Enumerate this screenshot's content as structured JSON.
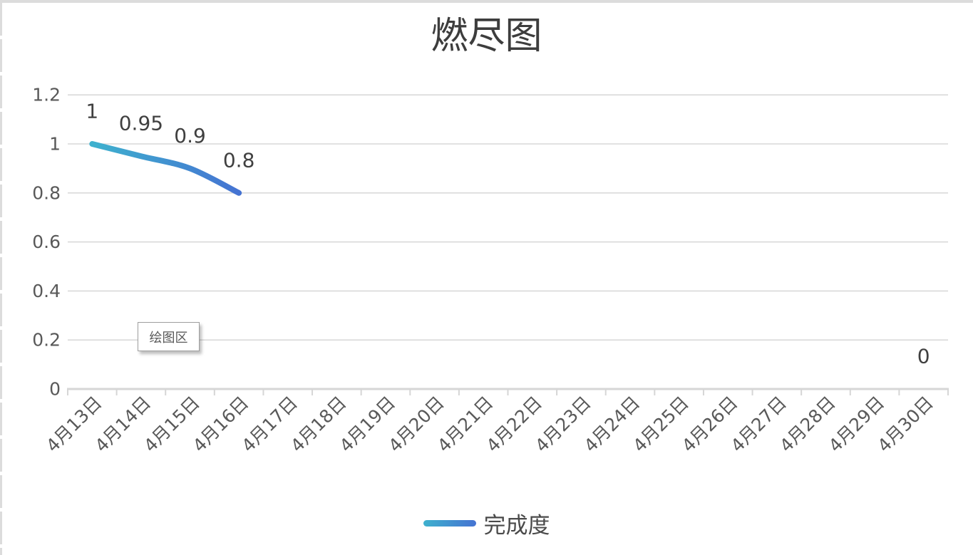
{
  "frame": {
    "background": "#ffffff",
    "border_color": "#dcdcdc"
  },
  "tooltip": {
    "text": "绘图区"
  },
  "chart_data": {
    "type": "line",
    "title": "燃尽图",
    "categories": [
      "4月13日",
      "4月14日",
      "4月15日",
      "4月16日",
      "4月17日",
      "4月18日",
      "4月19日",
      "4月20日",
      "4月21日",
      "4月22日",
      "4月23日",
      "4月24日",
      "4月25日",
      "4月26日",
      "4月27日",
      "4月28日",
      "4月29日",
      "4月30日"
    ],
    "series": [
      {
        "name": "完成度",
        "values": [
          1,
          0.95,
          0.9,
          0.8,
          null,
          null,
          null,
          null,
          null,
          null,
          null,
          null,
          null,
          null,
          null,
          null,
          null,
          0
        ],
        "gradient": [
          "#3eb1ce",
          "#4573d2"
        ]
      }
    ],
    "xlabel": "",
    "ylabel": "",
    "ylim": [
      0,
      1.2
    ],
    "yticks": [
      0,
      0.2,
      0.4,
      0.6,
      0.8,
      1,
      1.2
    ],
    "grid": true,
    "legend_position": "bottom",
    "data_labels_shown": true,
    "colors": {
      "gridline": "#d9d9d9",
      "axis": "#d6d6d6",
      "axis_label": "#595959",
      "data_label": "#404040",
      "title": "#3d3d3d",
      "legend_text": "#4a4a4a"
    }
  }
}
